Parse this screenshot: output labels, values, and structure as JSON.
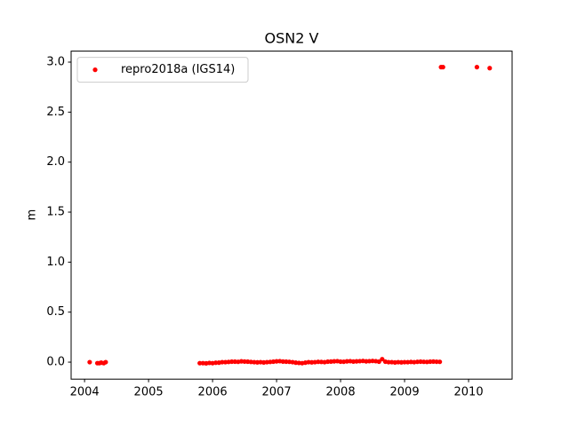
{
  "chart_data": {
    "type": "scatter",
    "title": "OSN2 V",
    "ylabel": "m",
    "x": [
      2004.08,
      2004.2,
      2004.23,
      2004.26,
      2004.3,
      2004.33,
      2005.8,
      2005.85,
      2005.9,
      2005.95,
      2006,
      2006.05,
      2006.1,
      2006.15,
      2006.2,
      2006.25,
      2006.3,
      2006.35,
      2006.4,
      2006.45,
      2006.5,
      2006.55,
      2006.6,
      2006.65,
      2006.7,
      2006.75,
      2006.8,
      2006.85,
      2006.9,
      2006.95,
      2007,
      2007.05,
      2007.1,
      2007.15,
      2007.2,
      2007.25,
      2007.3,
      2007.35,
      2007.4,
      2007.45,
      2007.5,
      2007.55,
      2007.6,
      2007.65,
      2007.7,
      2007.75,
      2007.8,
      2007.85,
      2007.9,
      2007.95,
      2008,
      2008.05,
      2008.1,
      2008.15,
      2008.2,
      2008.25,
      2008.3,
      2008.35,
      2008.4,
      2008.45,
      2008.5,
      2008.55,
      2008.6,
      2008.65,
      2008.7,
      2008.75,
      2008.8,
      2008.85,
      2008.9,
      2008.95,
      2009,
      2009.05,
      2009.1,
      2009.15,
      2009.2,
      2009.25,
      2009.3,
      2009.35,
      2009.4,
      2009.45,
      2009.5,
      2009.55,
      2009.57,
      2009.6,
      2010.13,
      2010.33
    ],
    "series": [
      {
        "name": "repro2018a (IGS14)",
        "color": "#ff0000",
        "values": [
          0.0,
          -0.01,
          -0.01,
          -0.005,
          -0.01,
          0.0,
          -0.01,
          -0.01,
          -0.012,
          -0.008,
          -0.01,
          -0.006,
          -0.005,
          0.0,
          0.0,
          0.002,
          0.005,
          0.005,
          0.003,
          0.008,
          0.006,
          0.005,
          0.002,
          0.0,
          -0.002,
          0.0,
          -0.003,
          0.0,
          0.002,
          0.005,
          0.008,
          0.01,
          0.006,
          0.005,
          0.003,
          0.0,
          -0.005,
          -0.008,
          -0.01,
          -0.005,
          0.0,
          -0.002,
          0.0,
          0.003,
          0.002,
          0.0,
          0.005,
          0.006,
          0.008,
          0.01,
          0.005,
          0.004,
          0.008,
          0.01,
          0.006,
          0.008,
          0.01,
          0.012,
          0.008,
          0.01,
          0.012,
          0.01,
          0.005,
          0.03,
          0.005,
          0.0,
          0.0,
          -0.003,
          0.0,
          -0.002,
          0.0,
          0.0,
          0.002,
          0.0,
          0.003,
          0.005,
          0.003,
          0.002,
          0.005,
          0.006,
          0.004,
          0.003,
          2.95,
          2.95,
          2.95,
          2.94
        ]
      }
    ],
    "xlim": [
      2003.79,
      2010.68
    ],
    "xticks": [
      2004,
      2005,
      2006,
      2007,
      2008,
      2009,
      2010
    ],
    "ylim": [
      -0.17,
      3.11
    ],
    "yticks": [
      {
        "value": 0,
        "label": "0.0"
      },
      {
        "value": 0.5,
        "label": "0.5"
      },
      {
        "value": 1,
        "label": "1.0"
      },
      {
        "value": 1.5,
        "label": "1.5"
      },
      {
        "value": 2,
        "label": "2.0"
      },
      {
        "value": 2.5,
        "label": "2.5"
      },
      {
        "value": 3,
        "label": "3.0"
      }
    ],
    "legend": "upper left"
  }
}
